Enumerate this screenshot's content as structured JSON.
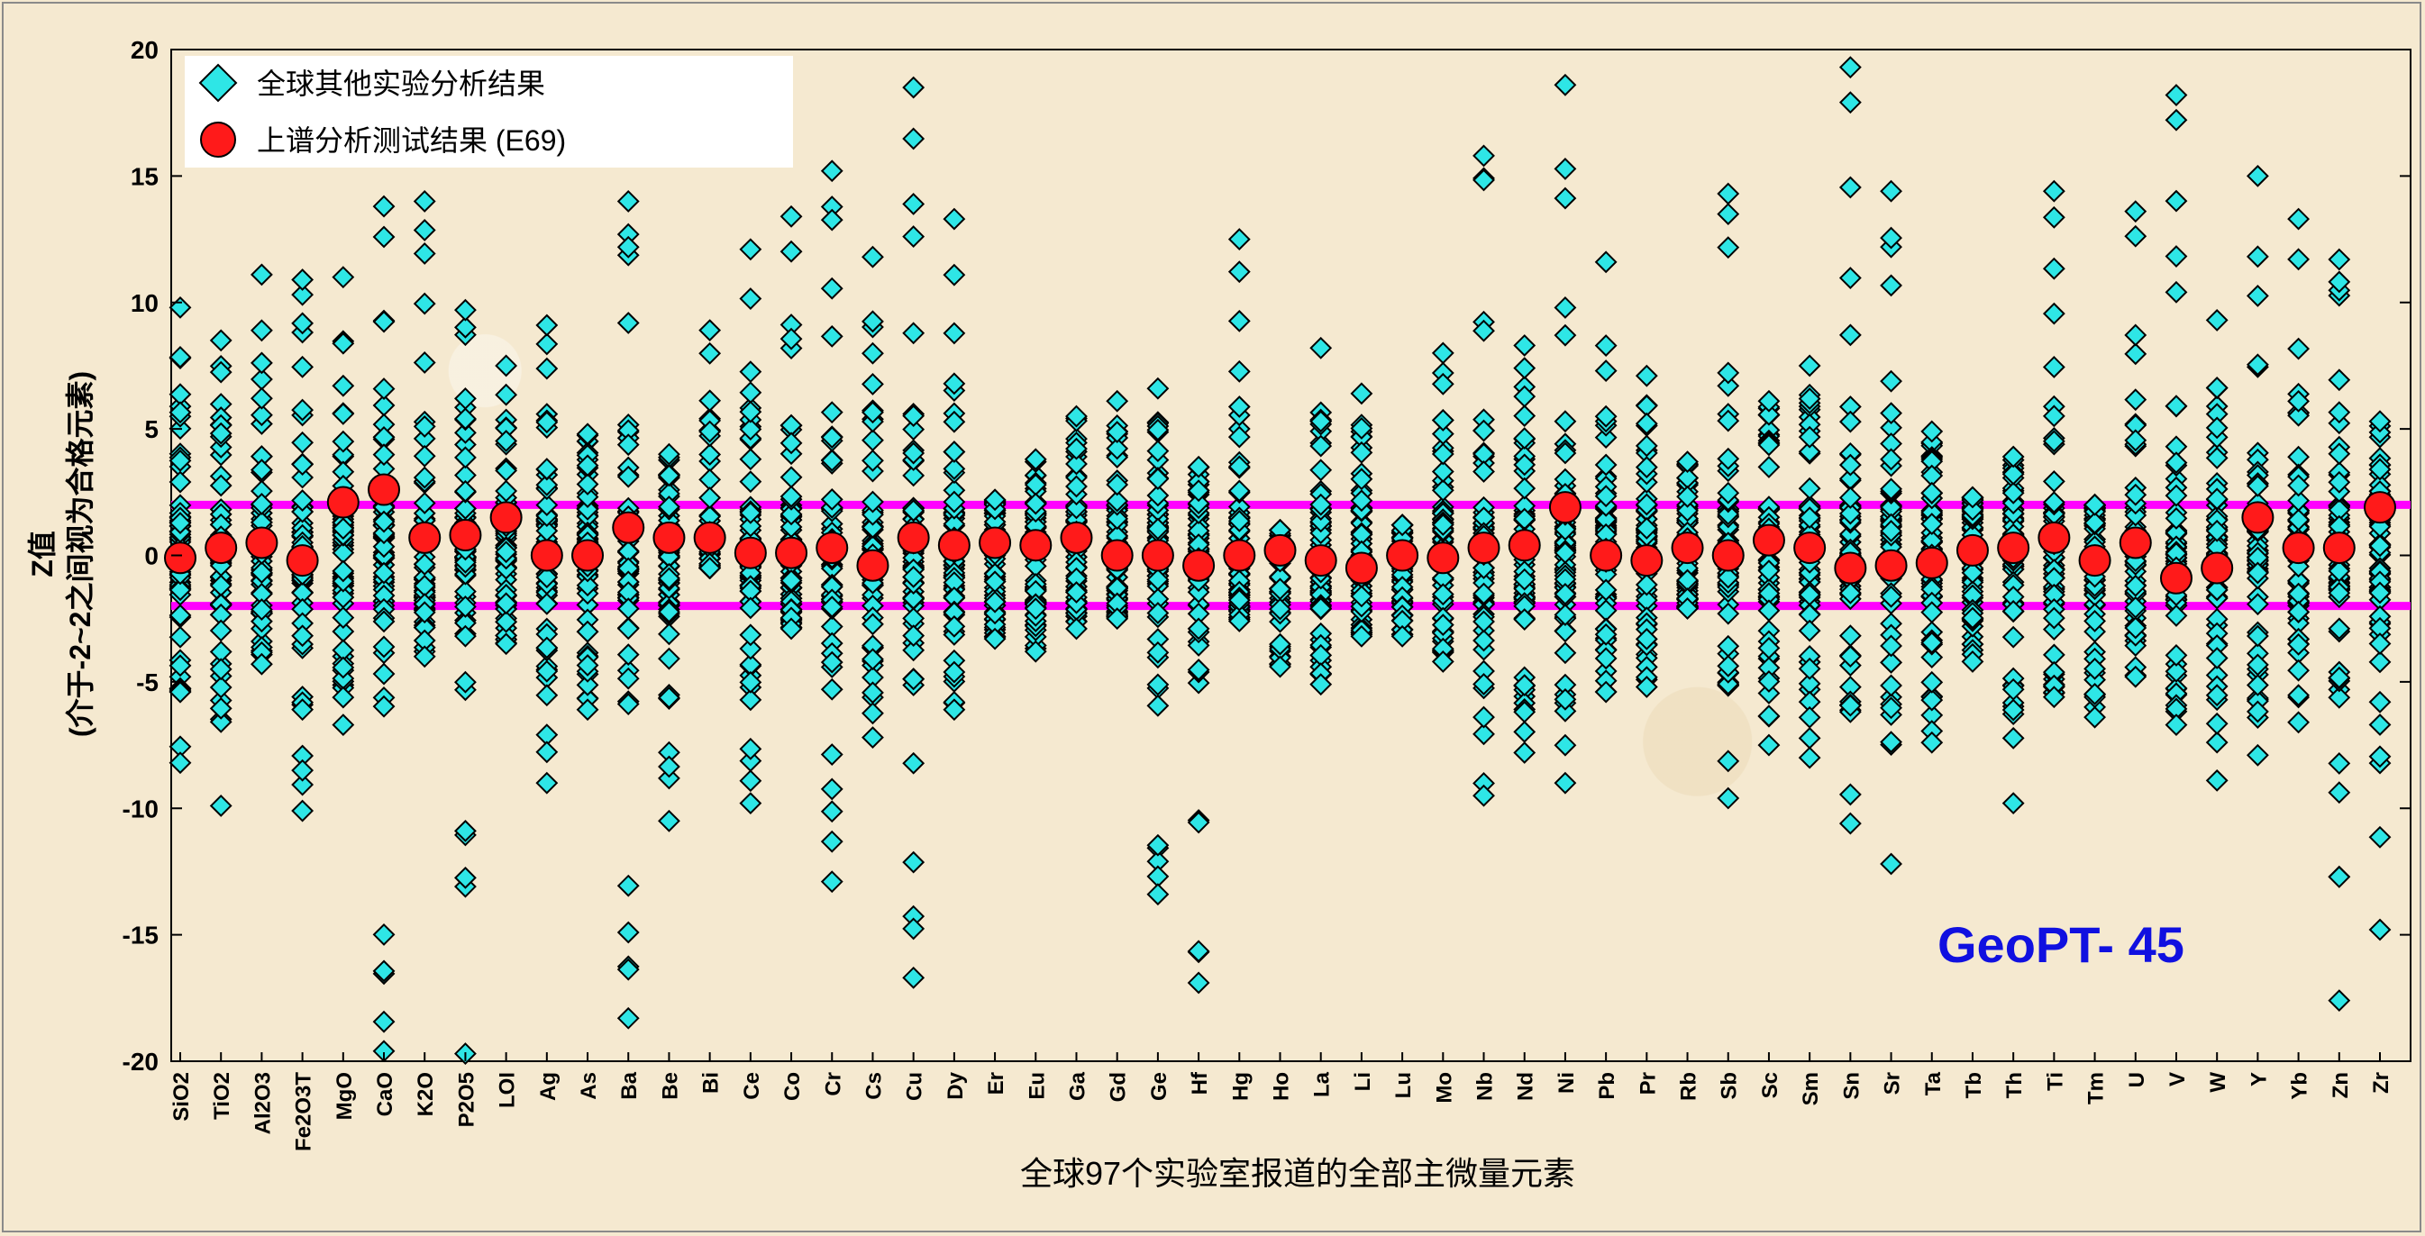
{
  "chart_data": {
    "type": "scatter",
    "title": "",
    "xlabel": "全球97个实验室报道的全部主微量元素",
    "ylabel": "Z值",
    "ylabel_sub": "(介于-2~2之间视为合格元素)",
    "ylim": [
      -20,
      20
    ],
    "yticks": [
      20,
      15,
      10,
      5,
      0,
      -5,
      -10,
      -15,
      -20
    ],
    "annotation": "GeoPT- 45",
    "reference_lines": [
      2,
      -2
    ],
    "colors": {
      "others": "#2ee6e6",
      "e69": "#ff1a1a",
      "limit_line": "#ff00ff",
      "annotation": "#1010e0"
    },
    "legend": {
      "position": "top-left",
      "items": [
        "全球其他实验分析结果",
        "上谱分析测试结果 (E69)"
      ]
    },
    "categories": [
      "SiO2",
      "TiO2",
      "Al2O3",
      "Fe2O3T",
      "MgO",
      "CaO",
      "K2O",
      "P2O5",
      "LOI",
      "Ag",
      "As",
      "Ba",
      "Be",
      "Bi",
      "Ce",
      "Co",
      "Cr",
      "Cs",
      "Cu",
      "Dy",
      "Er",
      "Eu",
      "Ga",
      "Gd",
      "Ge",
      "Hf",
      "Hg",
      "Ho",
      "La",
      "Li",
      "Lu",
      "Mo",
      "Nb",
      "Nd",
      "Ni",
      "Pb",
      "Pr",
      "Rb",
      "Sb",
      "Sc",
      "Sm",
      "Sn",
      "Sr",
      "Ta",
      "Tb",
      "Th",
      "Ti",
      "Tm",
      "U",
      "V",
      "W",
      "Y",
      "Yb",
      "Zn",
      "Zr"
    ],
    "series": [
      {
        "name": "上谱分析测试结果 (E69)",
        "values": [
          -0.1,
          0.3,
          0.5,
          -0.2,
          2.1,
          2.6,
          0.7,
          0.8,
          1.5,
          0.0,
          0.0,
          1.1,
          0.7,
          0.7,
          0.1,
          0.1,
          0.3,
          -0.4,
          0.7,
          0.4,
          0.5,
          0.4,
          0.7,
          0.0,
          0.0,
          -0.4,
          0.0,
          0.2,
          -0.2,
          -0.5,
          0.0,
          -0.1,
          0.3,
          0.4,
          1.9,
          0.0,
          -0.2,
          0.3,
          0.0,
          0.6,
          0.3,
          -0.5,
          -0.4,
          -0.3,
          0.2,
          0.3,
          0.7,
          -0.2,
          0.5,
          -0.9,
          -0.5,
          1.5,
          0.3,
          0.3,
          1.9
        ]
      },
      {
        "name": "全球其他实验分析结果",
        "extremes": [
          [
            9.8,
            -8.2
          ],
          [
            8.5,
            -9.9
          ],
          [
            11.1,
            -4.3
          ],
          [
            10.9,
            -10.1
          ],
          [
            11.0,
            -6.7
          ],
          [
            13.8,
            -19.6
          ],
          [
            14.0,
            -4.0
          ],
          [
            9.7,
            -19.7
          ],
          [
            7.5,
            -3.5
          ],
          [
            9.1,
            -9.0
          ],
          [
            4.8,
            -6.1
          ],
          [
            14.0,
            -18.3
          ],
          [
            4.0,
            -10.5
          ],
          [
            8.9,
            -0.5
          ],
          [
            12.1,
            -9.8
          ],
          [
            13.4,
            -2.9
          ],
          [
            15.2,
            -12.9
          ],
          [
            11.8,
            -7.2
          ],
          [
            18.5,
            -16.7
          ],
          [
            13.3,
            -6.1
          ],
          [
            2.2,
            -3.3
          ],
          [
            3.8,
            -3.8
          ],
          [
            5.5,
            -2.9
          ],
          [
            6.1,
            -2.5
          ],
          [
            6.6,
            -13.4
          ],
          [
            3.5,
            -16.9
          ],
          [
            12.5,
            -2.6
          ],
          [
            1.0,
            -4.4
          ],
          [
            8.2,
            -5.1
          ],
          [
            6.4,
            -3.2
          ],
          [
            1.2,
            -3.2
          ],
          [
            8.0,
            -4.2
          ],
          [
            15.8,
            -9.5
          ],
          [
            8.3,
            -7.8
          ],
          [
            18.6,
            -9.0
          ],
          [
            11.6,
            -5.4
          ],
          [
            7.1,
            -5.2
          ],
          [
            3.7,
            -2.1
          ],
          [
            14.3,
            -9.6
          ],
          [
            6.1,
            -7.5
          ],
          [
            7.5,
            -8.0
          ],
          [
            19.3,
            -10.6
          ],
          [
            14.4,
            -12.2
          ],
          [
            4.9,
            -7.4
          ],
          [
            2.3,
            -4.2
          ],
          [
            3.9,
            -9.8
          ],
          [
            14.4,
            -5.6
          ],
          [
            2.0,
            -6.4
          ],
          [
            13.6,
            -4.8
          ],
          [
            18.2,
            -6.7
          ],
          [
            9.3,
            -8.9
          ],
          [
            15.0,
            -7.9
          ],
          [
            13.3,
            -6.6
          ],
          [
            11.7,
            -17.6
          ],
          [
            5.3,
            -14.8
          ]
        ]
      }
    ]
  }
}
